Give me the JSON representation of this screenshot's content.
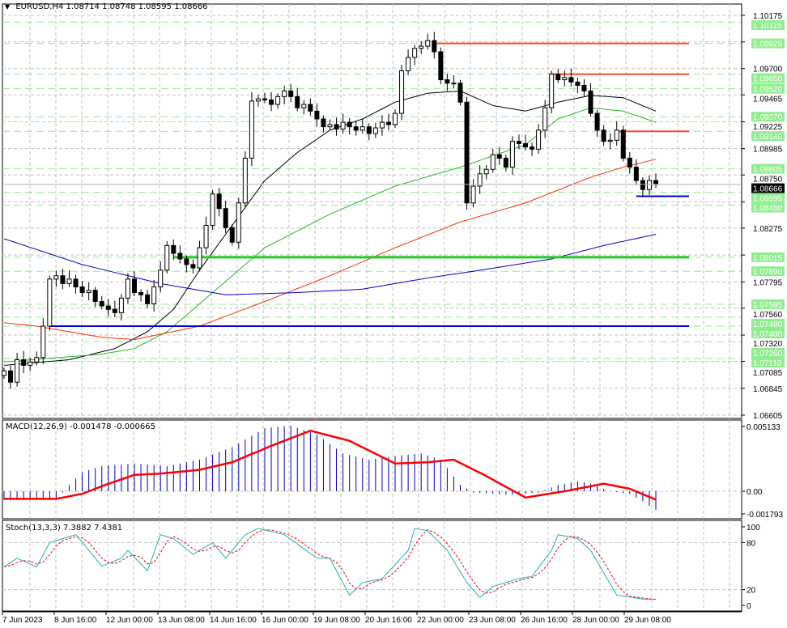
{
  "header": {
    "symbol": "EURUSD,H4",
    "open": "1.08714",
    "high": "1.08748",
    "low": "1.08595",
    "close": "1.08666"
  },
  "macd_label": "MACD(12,26,9) -0.001478 -0.000665",
  "stoch_label": "Stoch(13,3,3) 7.3882 7.4381",
  "colors": {
    "bull": "#ffffff",
    "bear": "#000000",
    "grid": "#c0c0c0",
    "level_green": "#90ee90",
    "ma_black": "#000000",
    "ma_green": "#2db52d",
    "ma_red": "#ff3000",
    "ma_blue": "#0000d0",
    "hline_orange": "#ff4a1a",
    "hline_green": "#20cc20",
    "hline_blue": "#0000e0",
    "macd_hist": "#0000c8",
    "macd_signal": "#ff0000",
    "stoch_main": "#20b2aa",
    "stoch_signal": "#ff0000"
  },
  "price_axis": {
    "ticks": [
      "1.10175",
      "1.09700",
      "1.09465",
      "1.09225",
      "1.08985",
      "1.08750",
      "1.08275",
      "1.07795",
      "1.07560",
      "1.07320",
      "1.07085",
      "1.06845",
      "1.06605"
    ],
    "levels": [
      "1.10115",
      "1.09925",
      "1.09650",
      "1.09520",
      "1.09270",
      "1.09140",
      "1.08805",
      "1.08595",
      "1.08480",
      "1.08015",
      "1.07890",
      "1.07595",
      "1.07480",
      "1.07400",
      "1.07260",
      "1.07110"
    ],
    "current": "1.08666"
  },
  "macd_axis": [
    "0.005133",
    "0.00",
    "-0.001793"
  ],
  "stoch_axis": [
    "100",
    "80",
    "20",
    "0"
  ],
  "time_axis": [
    "7 Jun 2023",
    "8 Jun 16:00",
    "12 Jun 00:00",
    "13 Jun 08:00",
    "14 Jun 16:00",
    "16 Jun 00:00",
    "19 Jun 08:00",
    "20 Jun 16:00",
    "22 Jun 00:00",
    "23 Jun 08:00",
    "26 Jun 16:00",
    "28 Jun 00:00",
    "29 Jun 08:00"
  ],
  "chart_data": {
    "type": "candlestick",
    "symbol": "EURUSD",
    "timeframe": "H4",
    "ylim": [
      1.06605,
      1.10175
    ],
    "closes": [
      1.07,
      1.069,
      1.071,
      1.0705,
      1.0708,
      1.0712,
      1.074,
      1.0782,
      1.0785,
      1.0778,
      1.0782,
      1.0775,
      1.077,
      1.0772,
      1.0762,
      1.0758,
      1.0755,
      1.0752,
      1.0765,
      1.0782,
      1.077,
      1.0768,
      1.076,
      1.0775,
      1.079,
      1.0812,
      1.0805,
      1.08,
      1.0795,
      1.0792,
      1.081,
      1.083,
      1.0858,
      1.0845,
      1.0828,
      1.0815,
      1.085,
      1.089,
      1.0941,
      1.0943,
      1.0942,
      1.0938,
      1.0945,
      1.095,
      1.0945,
      1.0935,
      1.0938,
      1.0932,
      1.0925,
      1.0918,
      1.092,
      1.0916,
      1.0922,
      1.0918,
      1.0915,
      1.0918,
      1.0912,
      1.0917,
      1.0922,
      1.092,
      1.093,
      1.0968,
      1.098,
      1.0988,
      1.099,
      1.0995,
      1.0985,
      1.096,
      1.0957,
      1.0957,
      1.094,
      1.085,
      1.0865,
      1.0876,
      1.088,
      1.0893,
      1.089,
      1.0882,
      1.0905,
      1.0903,
      1.09,
      1.0898,
      1.0915,
      1.0935,
      1.0965,
      1.096,
      1.0962,
      1.0958,
      1.0955,
      1.095,
      1.093,
      1.0915,
      1.0905,
      1.0906,
      1.0915,
      1.089,
      1.0882,
      1.087,
      1.0862,
      1.087,
      1.08666
    ],
    "moving_averages": [
      {
        "name": "ma-black",
        "color": "#000000",
        "points": [
          [
            0,
            1.0705
          ],
          [
            10,
            1.071
          ],
          [
            17,
            1.072
          ],
          [
            22,
            1.0735
          ],
          [
            26,
            1.0755
          ],
          [
            30,
            1.079
          ],
          [
            35,
            1.083
          ],
          [
            40,
            1.087
          ],
          [
            45,
            1.0895
          ],
          [
            50,
            1.0915
          ],
          [
            55,
            1.0925
          ],
          [
            60,
            1.094
          ],
          [
            65,
            1.0948
          ],
          [
            70,
            1.095
          ],
          [
            75,
            1.0937
          ],
          [
            80,
            1.0932
          ],
          [
            85,
            1.094
          ],
          [
            90,
            1.0946
          ],
          [
            95,
            1.0944
          ],
          [
            100,
            1.0932
          ]
        ]
      },
      {
        "name": "ma-green",
        "color": "#2db52d",
        "points": [
          [
            0,
            1.0708
          ],
          [
            15,
            1.0715
          ],
          [
            20,
            1.072
          ],
          [
            25,
            1.0735
          ],
          [
            30,
            1.076
          ],
          [
            35,
            1.0785
          ],
          [
            40,
            1.081
          ],
          [
            50,
            1.084
          ],
          [
            60,
            1.0865
          ],
          [
            70,
            1.0882
          ],
          [
            80,
            1.0902
          ],
          [
            85,
            1.0925
          ],
          [
            90,
            1.0935
          ],
          [
            95,
            1.0932
          ],
          [
            100,
            1.0922
          ]
        ]
      },
      {
        "name": "ma-red",
        "color": "#ff3000",
        "points": [
          [
            0,
            1.0743
          ],
          [
            5,
            1.074
          ],
          [
            15,
            1.073
          ],
          [
            20,
            1.0728
          ],
          [
            30,
            1.074
          ],
          [
            40,
            1.0762
          ],
          [
            50,
            1.0785
          ],
          [
            60,
            1.081
          ],
          [
            70,
            1.0833
          ],
          [
            80,
            1.085
          ],
          [
            90,
            1.0873
          ],
          [
            95,
            1.0882
          ],
          [
            100,
            1.0889
          ]
        ]
      },
      {
        "name": "ma-blue",
        "color": "#0000d0",
        "points": [
          [
            0,
            1.0818
          ],
          [
            12,
            1.0795
          ],
          [
            24,
            1.0778
          ],
          [
            34,
            1.0768
          ],
          [
            45,
            1.077
          ],
          [
            55,
            1.0773
          ],
          [
            65,
            1.0783
          ],
          [
            72,
            1.0789
          ],
          [
            84,
            1.08
          ],
          [
            92,
            1.0812
          ],
          [
            100,
            1.0822
          ]
        ]
      }
    ],
    "horizontal_lines": [
      {
        "name": "resistance-line-1",
        "price": 1.09925,
        "from": 66,
        "color": "#ff4a1a",
        "width": 2
      },
      {
        "name": "resistance-line-2",
        "price": 1.0965,
        "from": 84,
        "color": "#ff4a1a",
        "width": 2
      },
      {
        "name": "resistance-line-3",
        "price": 1.0914,
        "from": 94,
        "color": "#ff4a1a",
        "width": 2
      },
      {
        "name": "support-line-blue-short",
        "price": 1.0856,
        "from": 97,
        "color": "#0000e0",
        "width": 2
      },
      {
        "name": "support-line-green",
        "price": 1.08015,
        "from": 26,
        "color": "#20cc20",
        "width": 3
      },
      {
        "name": "support-line-blue",
        "price": 1.074,
        "from": 7,
        "color": "#0000e0",
        "width": 2
      }
    ],
    "macd": {
      "ylim": [
        -0.001793,
        0.005133
      ],
      "histogram_points": [
        [
          0,
          -0.0007
        ],
        [
          8,
          -0.0007
        ],
        [
          10,
          0.0005
        ],
        [
          12,
          0.0015
        ],
        [
          15,
          0.002
        ],
        [
          20,
          0.0022
        ],
        [
          25,
          0.002
        ],
        [
          30,
          0.0025
        ],
        [
          35,
          0.0035
        ],
        [
          40,
          0.005
        ],
        [
          44,
          0.0052
        ],
        [
          48,
          0.0045
        ],
        [
          52,
          0.003
        ],
        [
          56,
          0.0025
        ],
        [
          60,
          0.0028
        ],
        [
          64,
          0.003
        ],
        [
          67,
          0.0025
        ],
        [
          70,
          0.0005
        ],
        [
          72,
          -0.0001
        ],
        [
          75,
          -0.0002
        ],
        [
          78,
          -0.0003
        ],
        [
          82,
          -0.0001
        ],
        [
          85,
          0.0005
        ],
        [
          88,
          0.0008
        ],
        [
          90,
          0.0006
        ],
        [
          93,
          0.0
        ],
        [
          96,
          -0.0002
        ],
        [
          98,
          -0.0008
        ],
        [
          100,
          -0.001478
        ]
      ],
      "signal_points": [
        [
          0,
          -0.0006
        ],
        [
          8,
          -0.0006
        ],
        [
          12,
          -0.0002
        ],
        [
          15.5,
          0.0005
        ],
        [
          20,
          0.0013
        ],
        [
          24,
          0.0014
        ],
        [
          30,
          0.0017
        ],
        [
          35,
          0.0023
        ],
        [
          41,
          0.0036
        ],
        [
          47,
          0.0048
        ],
        [
          53,
          0.004
        ],
        [
          60,
          0.0022
        ],
        [
          65,
          0.0023
        ],
        [
          69,
          0.0025
        ],
        [
          74,
          0.0012
        ],
        [
          80,
          -0.0005
        ],
        [
          86,
          0.0
        ],
        [
          92,
          0.0006
        ],
        [
          96,
          0.0002
        ],
        [
          100,
          -0.000665
        ]
      ]
    },
    "stochastic": {
      "ylim": [
        0,
        100
      ],
      "main_points": [
        [
          0,
          49
        ],
        [
          2,
          60
        ],
        [
          5,
          49
        ],
        [
          7,
          80
        ],
        [
          11,
          90
        ],
        [
          13,
          70
        ],
        [
          15,
          50
        ],
        [
          18,
          60
        ],
        [
          19,
          70
        ],
        [
          22,
          44
        ],
        [
          24,
          90
        ],
        [
          26,
          85
        ],
        [
          29,
          65
        ],
        [
          32,
          80
        ],
        [
          34,
          60
        ],
        [
          37,
          90
        ],
        [
          39,
          98
        ],
        [
          43,
          90
        ],
        [
          48,
          60
        ],
        [
          50,
          60
        ],
        [
          53,
          13
        ],
        [
          55,
          29
        ],
        [
          58,
          34
        ],
        [
          62,
          70
        ],
        [
          63,
          98
        ],
        [
          65,
          95
        ],
        [
          68,
          70
        ],
        [
          71,
          29
        ],
        [
          73,
          10
        ],
        [
          75,
          24
        ],
        [
          79,
          34
        ],
        [
          81,
          37
        ],
        [
          84,
          70
        ],
        [
          85,
          90
        ],
        [
          88,
          85
        ],
        [
          90,
          70
        ],
        [
          94,
          13
        ],
        [
          98,
          8
        ],
        [
          100,
          7.3882
        ]
      ]
    }
  }
}
